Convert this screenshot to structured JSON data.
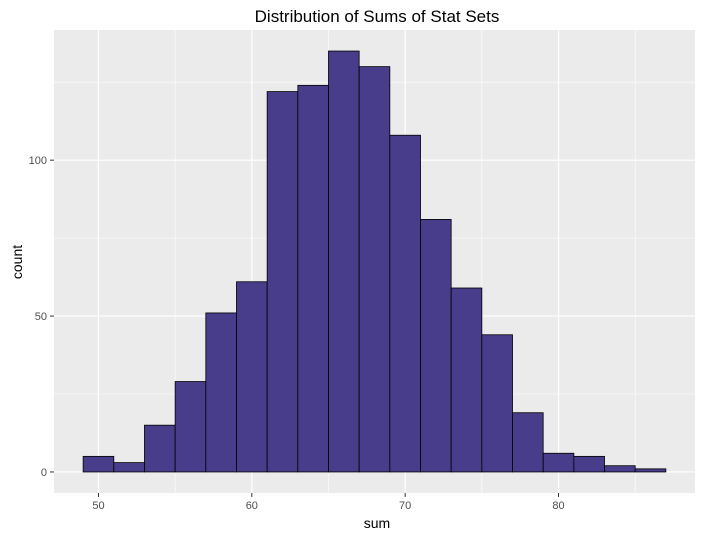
{
  "chart_data": {
    "type": "bar",
    "subtype": "histogram",
    "title": "Distribution of Sums of Stat Sets",
    "xlabel": "sum",
    "ylabel": "count",
    "bin_width": 2,
    "bins": [
      {
        "start": 49,
        "end": 51,
        "count": 5
      },
      {
        "start": 51,
        "end": 53,
        "count": 3
      },
      {
        "start": 53,
        "end": 55,
        "count": 15
      },
      {
        "start": 55,
        "end": 57,
        "count": 29
      },
      {
        "start": 57,
        "end": 59,
        "count": 51
      },
      {
        "start": 59,
        "end": 61,
        "count": 61
      },
      {
        "start": 61,
        "end": 63,
        "count": 122
      },
      {
        "start": 63,
        "end": 65,
        "count": 124
      },
      {
        "start": 65,
        "end": 67,
        "count": 135
      },
      {
        "start": 67,
        "end": 69,
        "count": 130
      },
      {
        "start": 69,
        "end": 71,
        "count": 108
      },
      {
        "start": 71,
        "end": 73,
        "count": 81
      },
      {
        "start": 73,
        "end": 75,
        "count": 59
      },
      {
        "start": 75,
        "end": 77,
        "count": 44
      },
      {
        "start": 77,
        "end": 79,
        "count": 19
      },
      {
        "start": 79,
        "end": 81,
        "count": 6
      },
      {
        "start": 81,
        "end": 83,
        "count": 5
      },
      {
        "start": 83,
        "end": 85,
        "count": 2
      },
      {
        "start": 85,
        "end": 87,
        "count": 1
      }
    ],
    "xlim": [
      47.1,
      88.9
    ],
    "ylim": [
      -6.75,
      141.75
    ],
    "x_ticks": [
      50,
      60,
      70,
      80
    ],
    "y_ticks": [
      0,
      50,
      100
    ],
    "grid": true,
    "colors": {
      "bar_fill": "#483D8B",
      "bar_stroke": "#000000",
      "panel_background": "#EBEBEB",
      "grid": "#FFFFFF"
    }
  }
}
